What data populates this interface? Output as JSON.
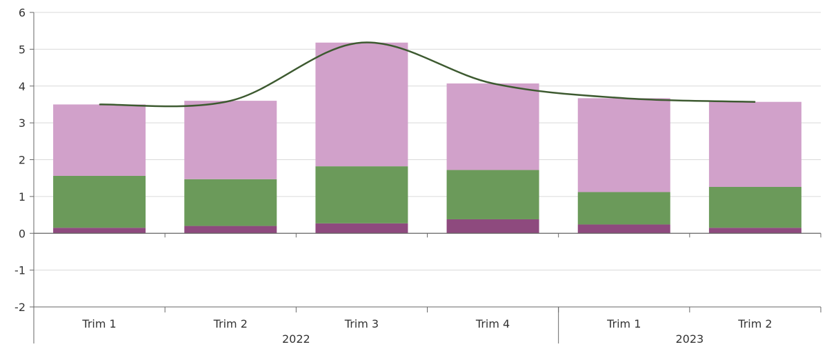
{
  "chart_data": {
    "type": "bar",
    "stacked": true,
    "categories": [
      "Trim 1",
      "Trim 2",
      "Trim 3",
      "Trim 4",
      "Trim 1",
      "Trim 2"
    ],
    "groups": [
      {
        "label": "2022",
        "span": [
          0,
          3
        ]
      },
      {
        "label": "2023",
        "span": [
          4,
          5
        ]
      }
    ],
    "series": [
      {
        "color": "#8e4a7e",
        "values": [
          0.15,
          0.2,
          0.27,
          0.38,
          0.24,
          0.15
        ]
      },
      {
        "color": "#6b9a5a",
        "values": [
          1.41,
          1.27,
          1.55,
          1.34,
          0.88,
          1.11
        ]
      },
      {
        "color": "#d1a1ca",
        "values": [
          1.94,
          2.13,
          3.36,
          2.35,
          2.55,
          2.31
        ]
      }
    ],
    "line": {
      "color": "#3d5a30",
      "values": [
        3.5,
        3.6,
        5.18,
        4.07,
        3.67,
        3.57
      ]
    },
    "ylim": [
      -2,
      6
    ],
    "yticks": [
      "6",
      "5",
      "4",
      "3",
      "2",
      "1",
      "0",
      "-1",
      "-2"
    ],
    "grid": true,
    "title": "",
    "xlabel": "",
    "ylabel": ""
  }
}
